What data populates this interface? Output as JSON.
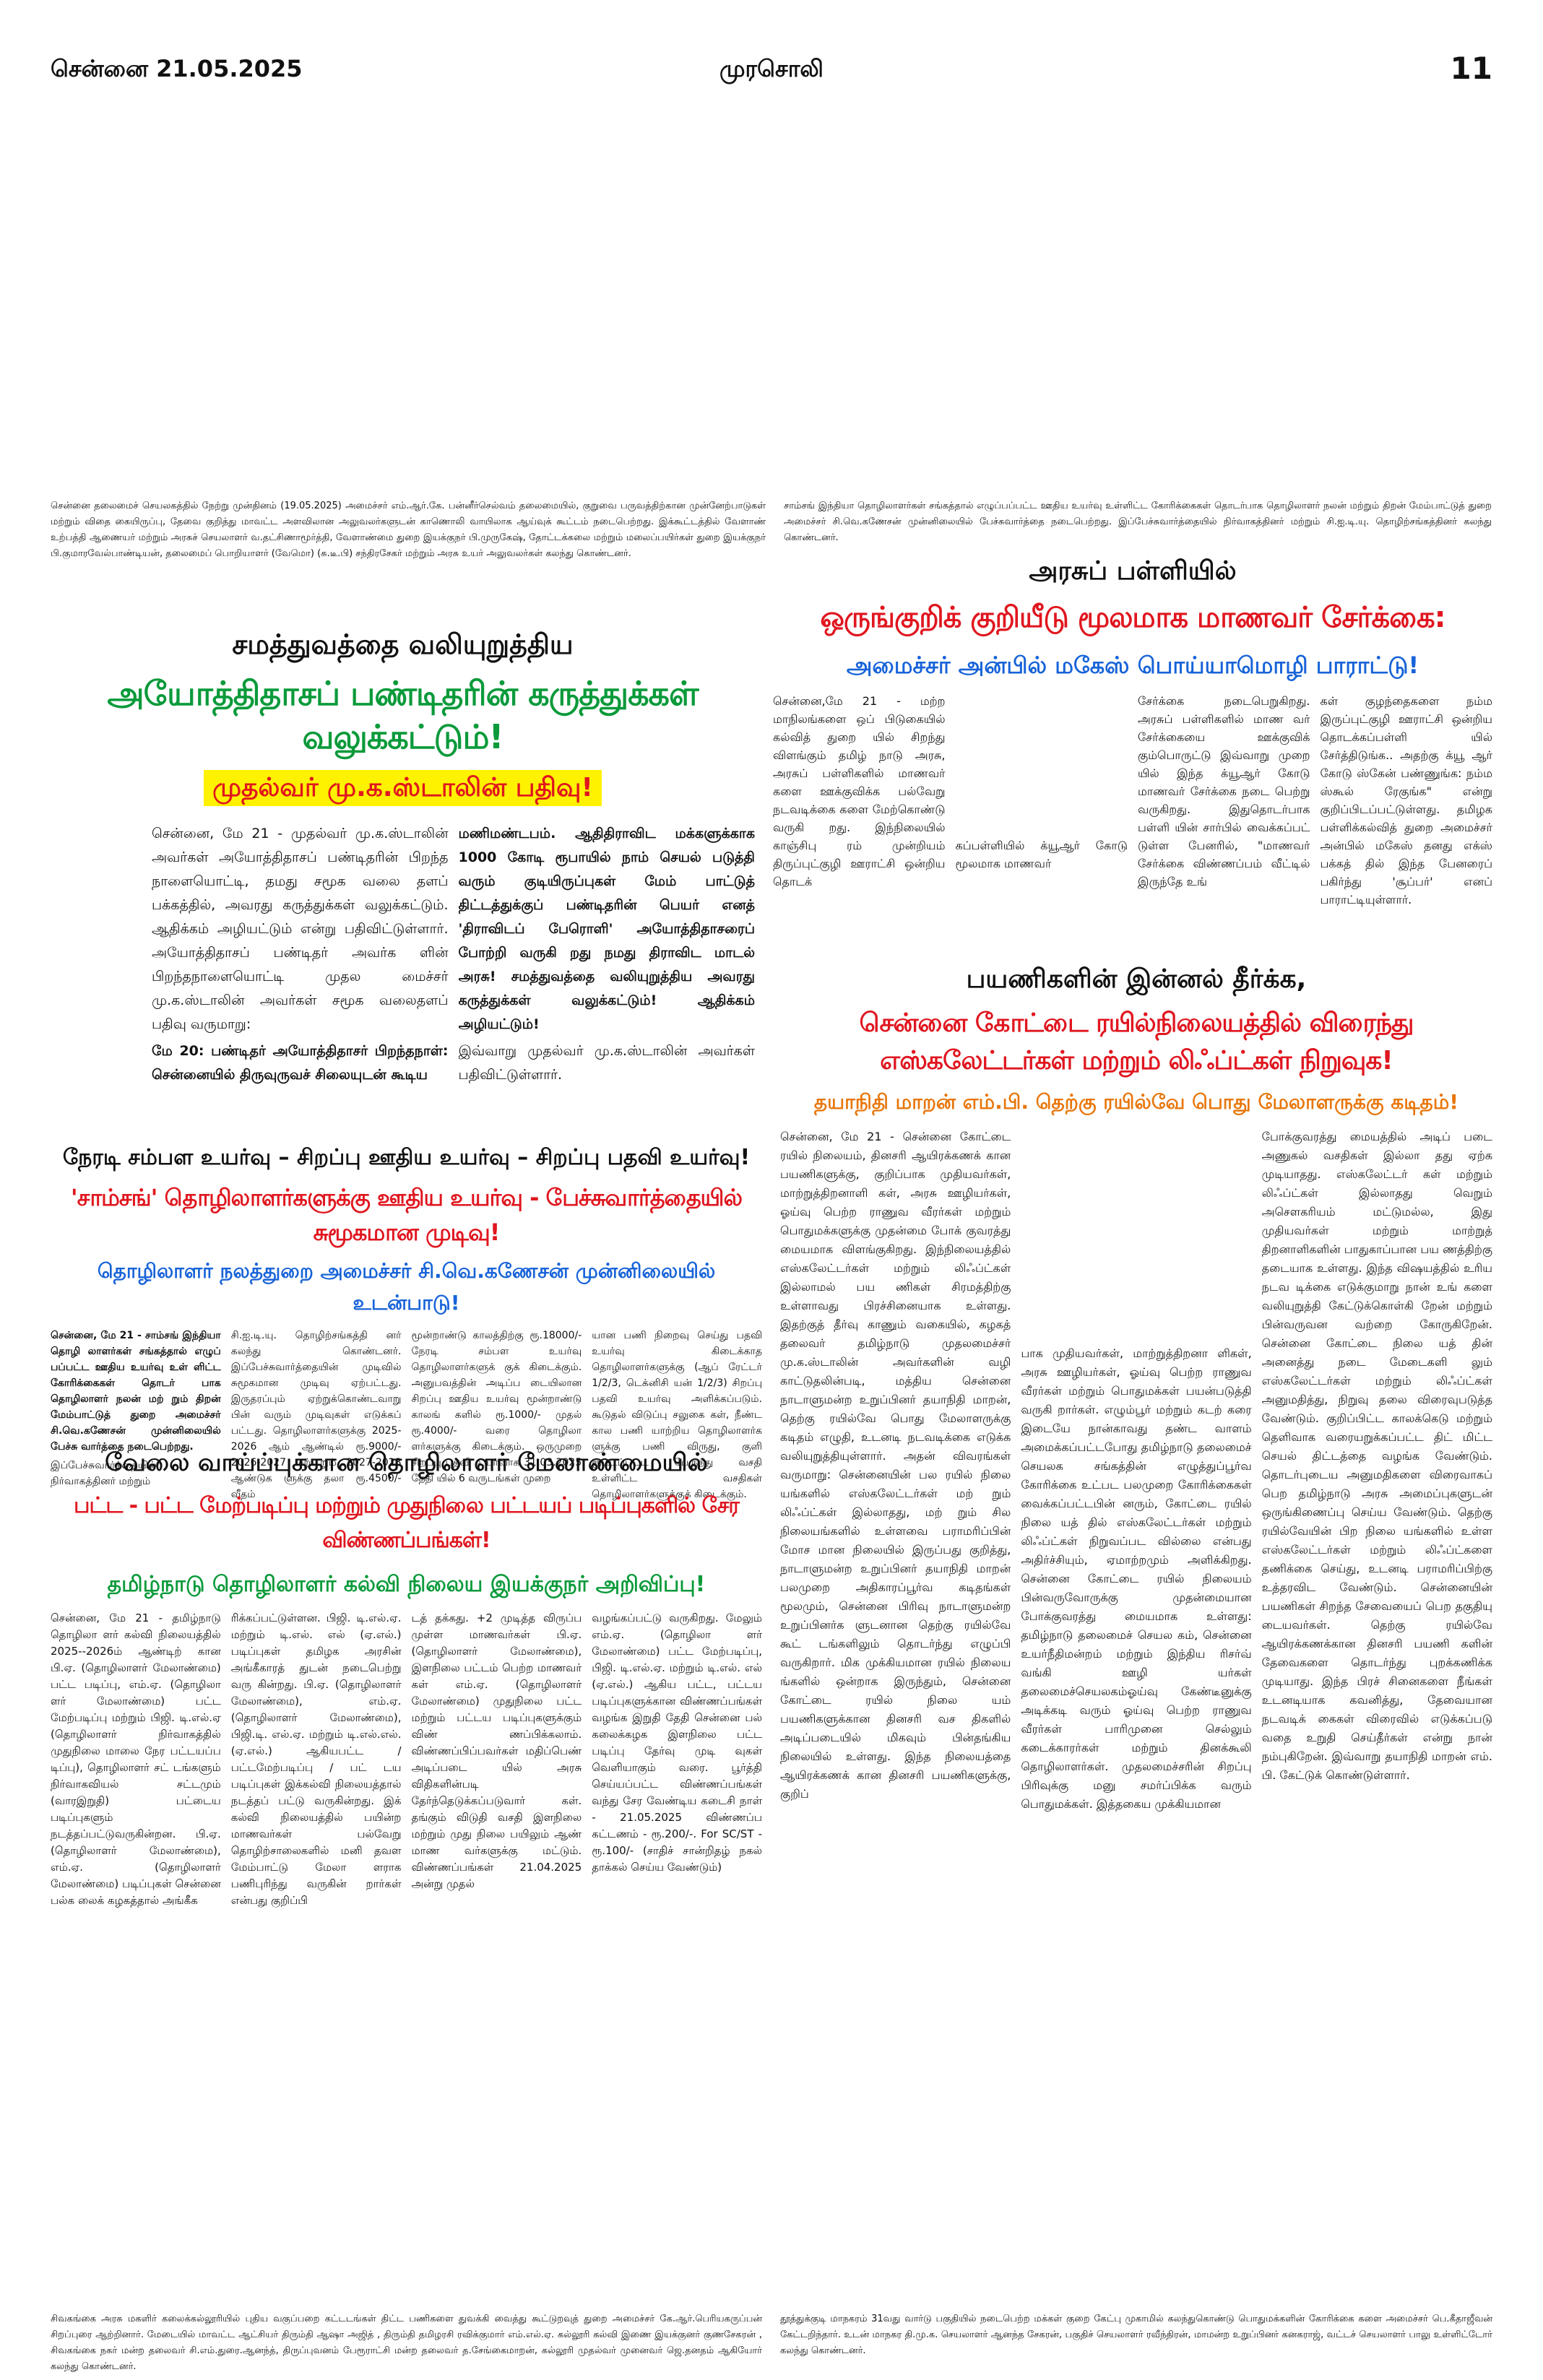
{
  "masthead": {
    "date": "சென்னை 21.05.2025",
    "name": "முரசொலி",
    "page": "11"
  },
  "captions": {
    "top_left": "சென்னை தலைமைச் செயலகத்தில் நேற்று முன்தினம் (19.05.2025) அமைச்சர் எம்.ஆர்.கே. பன்னீர்செல்வம் தலைமையில், குறுவை பருவத்திற்கான முன்னேற்பாடுகள் மற்றும் விதை கையிருப்பு, தேவை குறித்து மாவட்ட அளவிலான அலுவலர்களுடன் காணொலி வாயிலாக ஆய்வுக் கூட்டம் நடைபெற்றது. இக்கூட்டத்தில் வேளாண் உற்பத்தி ஆணையர் மற்றும் அரசுச் செயலாளர் வ.தட்சிணாமூர்த்தி, வேளாண்மை துறை இயக்குநர் பி.முருகேஷ், தோட்டக்கலை மற்றும் மலைப்பயிர்கள் துறை இயக்குநர் பி.குமாரவேல்பாண்டியன், தலைமைப் பொறியாளர் (வேமொ) (சு.டீ.பி) சந்திரசேகர் மற்றும் அரசு உயர் அலுவலர்கள் கலந்து கொண்டனர்.",
    "top_right": "சாம்சங் இந்தியா தொழிலாளர்கள் சங்கத்தால் எழுப்பப்பட்ட ஊதிய உயர்வு உள்ளிட்ட கோரிக்கைகள் தொடர்பாக தொழிலாளர் நலன் மற்றும் திறன் மேம்பாட்டுத் துறை அமைச்சர் சி.வெ.கணேசன் முன்னிலையில் பேச்சுவார்த்தை நடைபெற்றது. இப்பேச்சுவார்த்தையில் நிர்வாகத்தினர் மற்றும் சி.ஐ.டி.யு. தொழிற்சங்கத்தினர் கலந்து கொண்டனர்.",
    "bottom_left": "சிவகங்கை அரசு மகளிர் கலைக்கல்லூரியில் புதிய வகுப்பறை கட்டடங்கள் திட்ட பணிகளை துவக்கி வைத்து கூட்டுறவுத் துறை அமைச்சர் கே.ஆர்.பெரியகருப்பன் சிறப்புரை ஆற்றினார். மேடையில் மாவட்ட ஆட்சியர் திரும்தி ஆஷா அஜித் , திரும்தி தமிழரசி ரவிக்குமார் எம்.எல்.ஏ. கல்லூரி கல்வி இணை இயக்குனர் குணசேகரன் , சிவகங்கை நகர் மன்ற தலைவர் சி.எம்.துரை.ஆனந்த், திருப்புவனம் பேரூராட்சி மன்ற தலைவர் த.சேங்கைமாறன், கல்லூரி முதல்வர் முனைவர் ஜெ.தனதம் ஆகியோர் கலந்து கொண்டனர்.",
    "bottom_right": "தூத்துக்குடி மாநகரம் 31வது வார்டு பகுதியில் நடைபெற்ற மக்கள் குறை கேட்பு முகாமில் கலந்துகொண்டு பொதுமக்களின் கோரிக்கை களை அமைச்சர் பெ.கீதாஜீவன் கேட்டறிந்தார். உடன் மாநகர தி.மு.க. செயலாளர் ஆனந்த சேகரன், பகுதிச் செயலாளர் ரவீந்திரன், மாமன்ற உறுப்பினர் கனகராஜ், வட்டச் செயலாளர் பாலு உள்ளிட்டோர் கலந்து கொண்டனர்."
  },
  "article_stalin": {
    "kicker": "சமத்துவத்தை வலியுறுத்திய",
    "headline": "அயோத்திதாசப் பண்டிதரின் கருத்துக்கள் வலுக்கட்டும்!",
    "subhead": "முதல்வர் மு.க.ஸ்டாலின் பதிவு!",
    "col1": "சென்னை, மே 21 - முதல்வர் மு.க.ஸ்டாலின் அவர்கள் அயோத்திதாசப் பண்டிதரின் பிறந்த நாளையொட்டி, தமது சமூக வலை தளப் பக்கத்தில், அவரது கருத்துக்கள் வலுக்கட்டும். ஆதிக்கம் அழியட்டும் என்று பதிவிட்டுள்ளார். அயோத்திதாசப் பண்டிதர் அவர்க ளின் பிறந்தநாளையொட்டி முதல மைச்சர் மு.க.ஸ்டாலின் அவர்கள் சமூக வலைதளப் பதிவு வருமாறு:",
    "col1_bold": "மே 20: பண்டிதர் அயோத்திதாசர் பிறந்தநாள்: சென்னையில் திருவுருவச் சிலையுடன் கூடிய",
    "col2_bold": "மணிமண்டபம். ஆதிதிராவிட மக்களுக்காக 1000 கோடி ரூபாயில் நாம் செயல் படுத்தி வரும் குடியிருப்புகள் மேம் பாட்டுத் திட்டத்துக்குப் பண்டிதரின் பெயர் எனத் 'திராவிடப் பேரொளி' அயோத்திதாசரைப் போற்றி வருகி றது நமது திராவிட மாடல் அரசு! சமத்துவத்தை வலியுறுத்திய அவரது கருத்துக்கள் வலுக்கட்டும்! ஆதிக்கம் அழியட்டும்!",
    "col2": "இவ்வாறு முதல்வர் மு.க.ஸ்டாலின் அவர்கள் பதிவிட்டுள்ளார்."
  },
  "article_school": {
    "kicker": "அரசுப் பள்ளியில்",
    "headline": "ஒருங்குறிக் குறியீடு மூலமாக மாணவர் சேர்க்கை:",
    "subhead": "அமைச்சர் அன்பில் மகேஸ் பொய்யாமொழி பாராட்டு!",
    "col1": "சென்னை,மே 21 - மற்ற மாநிலங்களை ஒப் பிடுகையில் கல்வித் துறை யில் சிறந்து விளங்கும் தமிழ் நாடு அரசு, அரசுப் பள்ளிகளில் மாணவர் களை ஊக்குவிக்க பல்வேறு நடவடிக்கை களை மேற்கொண்டு வருகி றது. இந்நிலையில் காஞ்சிபு ரம் முன்றியம் திருப்புட்குழி ஊராட்சி ஒன்றிய தொடக்",
    "col2": "கப்பள்ளியில் க்யூஆர் கோடு மூலமாக மாணவர்",
    "col3": "சேர்க்கை நடைபெறுகிறது. அரசுப் பள்ளிகளில் மாண வர் சேர்க்கையை ஊக்குவிக் கும்பொருட்டு இவ்வாறு முறை யில் இந்த க்யூஆர் கோடு மாணவர் சேர்க்கை நடை பெற்று வருகிறது. இதுதொடர்பாக பள்ளி யின் சார்பில் வைக்கப்பட் டுள்ள பேனரில், \"மாணவர் சேர்க்கை விண்ணப்பம் வீட்டில் இருந்தே உங்",
    "col4": "கள் குழந்தைகளை நம்ம இருப்புட்குழி ஊராட்சி ஒன்றிய தொடக்கப்பள்ளி யில் சேர்த்திடுங்க.. அதற்கு க்யூ ஆர் கோடு ஸ்கேன் பண்ணுங்க: நம்ம ஸ்கூல் ரேகுங்க\" என்று குறிப்பிடப்பட்டுள்ளது. தமிழக பள்ளிக்கல்வித் துறை அமைச்சர் அன்பில் மகேஸ் தனது எக்ஸ் பக்கத் தில் இந்த பேனரைப் பகிர்ந்து 'சூப்பர்' எனப் பாராட்டியுள்ளார்."
  },
  "article_samsung": {
    "kicker": "நேரடி சம்பள உயர்வு – சிறப்பு ஊதிய உயர்வு – சிறப்பு பதவி உயர்வு!",
    "headline": "'சாம்சங்' தொழிலாளர்களுக்கு ஊதிய உயர்வு - பேச்சுவார்த்தையில் சுமூகமான முடிவு!",
    "subhead": "தொழிலாளர் நலத்துறை அமைச்சர் சி.வெ.கணேசன் முன்னிலையில் உடன்பாடு!",
    "col1_bold": "சென்னை, மே 21 - சாம்சங் இந்தியா தொழி லாளர்கள் சங்கத்தால் எழுப் பப்பட்ட ஊதிய உயர்வு உள் ளிட்ட கோரிக்கைகள் தொடர் பாக தொழிலாளர் நலன் மற் றும் திறன் மேம்பாட்டுத் துறை அமைச்சர் சி.வெ.கணேசன் முன்னிலையில் பேச்சு வார்த்தை நடைபெற்றது.",
    "col1": "இப்பேச்சுவார்த்தையில் நிர்வாகத்தினர் மற்றும்",
    "col2": "சி.ஐ.டி.யு. தொழிற்சங்கத்தி னர் கலந்து கொண்டனர். இப்பேச்சுவார்த்தையின் முடிவில் சுமூகமான முடிவு ஏற்பட்டது. இருதரப்பும் ஏற்றுக்கொண்டவாறு பின் வரும் முடிவுகள் எடுக்கப் பட்டது. தொழிலாளர்களுக்கு 2025-2026 ஆம் ஆண்டில் ரூ.9000/- 2026-2027 மற் றும் 2027-2028 ஆண்டுக ளுக்கு தலா ரூ.4500/- வீதம்",
    "col3": "மூன்றாண்டு காலத்திற்கு ரூ.18000/- நேரடி சம்பள உயர்வு தொழிலாளர்களுக் குக் கிடைக்கும். அனுபவத்தின் அடிப்ப டையிலான சிறப்பு ஊதிய உயர்வு மூன்றாண்டு காலங் களில் ரூ.1000/- முதல் ரூ.4000/- வரை தொழிலா ளர்களுக்கு கிடைக்கும். ஒருமுறை சிறப்பு பதவி உயர்வாக 31.03.2025 தேதி யில் 6 வருடங்கள் முறை",
    "col4": "யான பணி நிறைவு செய்து பதவி உயர்வு கிடைக்காத தொழிலாளர்களுக்கு (ஆப் ரேட்டர் 1/2/3, டெக்னிசி யன் 1/2/3) சிறப்பு பதவி உயர்வு அளிக்கப்படும். கூடுதல் விடுப்பு சலுகை கள், நீண்ட கால பணி யாற்றிய தொழிலாளர்க ளுக்கு பணி விருது, குளி ரூட்டப்பட்ட பேருந்து வசதி உள்ளிட்ட வசதிகள் தொழிலாளர்களுக்குக் கிடைக்கும்."
  },
  "article_escalator": {
    "kicker": "பயணிகளின் இன்னல் தீர்க்க,",
    "headline": "சென்னை கோட்டை ரயில்நிலையத்தில் விரைந்து எஸ்கலேட்டர்கள் மற்றும் லிஃப்ட்கள் நிறுவுக!",
    "subhead": "தயாநிதி மாறன் எம்.பி. தெற்கு ரயில்வே பொது மேலாளருக்கு கடிதம்!",
    "col1": "சென்னை, மே 21 - சென்னை கோட்டை ரயில் நிலையம், தினசரி ஆயிரக்கணக் கான பயணிகளுக்கு, குறிப்பாக முதியவர்கள், மாற்றுத்திறனாளி கள், அரசு ஊழியர்கள், ஓய்வு பெற்ற ராணுவ வீரர்கள் மற்றும் பொதுமக்களுக்கு முதன்மை போக் குவரத்து மையமாக விளங்குகிறது. இந்நிலையத்தில் எஸ்கலேட்டர்கள் மற்றும் லிஃப்ட்கள் இல்லாமல் பய ணிகள் சிரமத்திற்கு உள்ளாவது பிரச்சினையாக உள்ளது. இதற்குத் தீர்வு காணும் வகையில், கழகத் தலைவர் தமிழ்நாடு முதலமைச்சர் மு.க.ஸ்டாலின் அவர்களின் வழி காட்டுதலின்படி, மத்திய சென்னை நாடாளுமன்ற உறுப்பினர் தயாநிதி மாறன், தெற்கு ரயில்வே பொது மேலாளருக்கு கடிதம் எழுதி, உடனடி நடவடிக்கை எடுக்க வலியுறுத்தியுள்ளார். அதன் விவரங்கள் வருமாறு: சென்னையின் பல ரயில் நிலை யங்களில் எஸ்கலேட்டர்கள் மற் றும் லிஃப்ட்கள் இல்லாதது, மற் றும் சில நிலையங்களில் உள்ளவை பராமரிப்பின் மோச மான நிலையில் இருப்பது குறித்து, நாடாளுமன்ற உறுப்பினர் தயாநிதி மாறன் பலமுறை அதிகாரப்பூர்வ கடிதங்கள் மூலமும், சென்னை பிரிவு நாடாளுமன்ற உறுப்பினர்க ளுடனான தெற்கு ரயில்வே கூட் டங்களிலும் தொடர்ந்து எழுப்பி வருகிறார். மிக முக்கியமான ரயில் நிலைய ங்களில் ஒன்றாக இருந்தும், சென்னை கோட்டை ரயில் நிலை யம் பயணிகளுக்கான தினசரி வச திகளில் அடிப்படையில் மிகவும் பின்தங்கிய நிலையில் உள்ளது. இந்த நிலையத்தை ஆயிரக்கணக் கான தினசரி பயணிகளுக்கு, குறிப்",
    "col2": "பாக முதியவர்கள், மாற்றுத்திறனா ளிகள், அரசு ஊழியர்கள், ஓய்வு பெற்ற ராணுவ வீரர்கள் மற்றும் பொதுமக்கள் பயன்படுத்தி வருகி றார்கள். எழும்பூர் மற்றும் கடற் கரை இடையே நான்காவது தண்ட வாளம் அமைக்கப்பட்டபோது தமிழ்நாடு தலைமைச் செயலக சங்கத்தின் எழுத்துப்பூர்வ கோரிக்கை உட்பட பலமுறை கோரிக்கைகள் வைக்கப்பட்டபின் னரும், கோட்டை ரயில் நிலை யத் தில் எஸ்கலேட்டர்கள் மற்றும் லிஃப்ட்கள் நிறுவப்பட வில்லை என்பது அதிர்ச்சியும், ஏமாற்றமும் அளிக்கிறது. சென்னை கோட்டை ரயில் நிலையம் பின்வருவோருக்கு முதன்மையான போக்குவரத்து மையமாக உள்ளது: தமிழ்நாடு தலைமைச் செயல கம், சென்னை உயர்நீதிமன்றம் மற்றும் இந்திய ரிசர்வ் வங்கி ஊழி யர்கள் தலைமைச்செயலகம்ஓய்வு கேண்டீனுக்கு அடிக்கடி வரும் ஓய்வு பெற்ற ராணுவ வீரர்கள் பாரிமுனை செல்லும் கடைக்காரர்கள் மற்றும் தினக்கூலி தொழிலாளர்கள். முதலமைச்சரின் சிறப்பு பிரிவுக்கு மனு சமர்ப்பிக்க வரும் பொதுமக்கள். இத்தகைய முக்கியமான",
    "col3": "போக்குவரத்து மையத்தில் அடிப் படை அணுகல் வசதிகள் இல்லா தது ஏற்க முடியாதது. எஸ்கலேட்டர் கள் மற்றும் லிஃப்ட்கள் இல்லாதது வெறும் அசௌகரியம் மட்டுமல்ல, இது முதியவர்கள் மற்றும் மாற்றுத் திறனாளிகளின் பாதுகாப்பான பய ணத்திற்கு தடையாக உள்ளது. இந்த விஷயத்தில் உரிய நடவ டிக்கை எடுக்குமாறு நான் உங் களை வலியுறுத்தி கேட்டுக்கொள்கி றேன் மற்றும் பின்வருவன வற்றை கோருகிறேன். சென்னை கோட்டை நிலை யத் தின் அனைத்து நடை மேடைகளி லும் எஸ்கலேட்டர்கள் மற்றும் லிஃப்ட்கள் அனுமதித்து, நிறுவு தலை விரைவுபடுத்த வேண்டும். குறிப்பிட்ட காலக்கெடு மற்றும் தெளிவாக வரையறுக்கப்பட்ட திட் மிட்ட செயல் திட்டத்தை வழங்க வேண்டும். தொடர்புடைய அனுமதிகளை விரைவாகப் பெற தமிழ்நாடு அரசு அமைப்புகளுடன் ஒருங்கிணைப்பு செய்ய வேண்டும். தெற்கு ரயில்வேயின் பிற நிலை யங்களில் உள்ள எஸ்கலேட்டர்கள் மற்றும் லிஃப்ட்களை தணிக்கை செய்து, உடனடி பராமரிப்பிற்கு உத்தரவிட வேண்டும். சென்னையின் பயணிகள் சிறந்த சேவையைப் பெற தகுதியு டையவர்கள். தெற்கு ரயில்வே ஆயிரக்கணக்கான தினசரி பயணி களின் தேவைகளை தொடர்ந்து புறக்கணிக்க முடியாது. இந்த பிரச் சினைகளை நீங்கள் உடனடியாக கவனித்து, தேவையான நடவடிக் கைகள் விரைவில் எடுக்கப்படு வதை உறுதி செய்தீர்கள் என்று நான் நம்புகிறேன். இவ்வாறு தயாநிதி மாறன் எம். பி. கேட்டுக் கொண்டுள்ளார்."
  },
  "article_education": {
    "kicker": "வேலை வாய்ப்புக்கான தொழிலாளர் மேலாண்மையில்",
    "headline": "பட்ட - பட்ட மேற்படிப்பு மற்றும் முதுநிலை பட்டயப் படிப்புகளில் சேர விண்ணப்பங்கள்!",
    "subhead": "தமிழ்நாடு தொழிலாளர் கல்வி நிலைய இயக்குநர் அறிவிப்பு!",
    "col1": "சென்னை, மே 21 - தமிழ்நாடு தொழிலா ளர் கல்வி நிலையத்தில் 2025--2026ம் ஆண்டிற் கான பி.ஏ. (தொழிலாளர் மேலாண்மை) பட்ட படிப்பு, எம்.ஏ. (தொழிலா ளர் மேலாண்மை) பட்ட மேற்படிப்பு மற்றும் பிஜி. டி.எல்.ஏ (தொழிலாளர் நிர்வாகத்தில் முதுநிலை மாலை நேர பட்டயப்ப டிப்பு), தொழிலாளர் சட் டங்களும் நிர்வாகவியல் சட்டமும் (வாரஇறுதி) பட்டைய படிப்புகளும் நடத்தப்பட்டுவருகின்றன. பி.ஏ. (தொழிலாளர் மேலாண்மை), எம்.ஏ. (தொழிலாளர் மேலாண்மை) படிப்புகள் சென்னை பல்க லைக் கழகத்தால் அங்கீக",
    "col2": "ரிக்கப்பட்டுள்ளன. பிஜி. டி.எல்.ஏ. மற்றும் டி.எல். எல் (ஏ.எல்.) படிப்புகள் தமிழக அரசின் அங்கீகாரத் துடன் நடைபெற்று வரு கின்றது. பி.ஏ. (தொழிலாளர் மேலாண்மை), எம்.ஏ. (தொழிலாளர் மேலாண்மை), பிஜி.டி. எல்.ஏ. மற்றும் டி.எல்.எல். (ஏ.எல்.) ஆகியபட்ட / பட்டமேற்படிப்பு / பட் டய படிப்புகள் இக்கல்வி நிலையத்தால் நடத்தப் பட்டு வருகின்றது. இக் கல்வி நிலையத்தில் பயின்ற மாணவர்கள் பல்வேறு தொழிற்சாலைகளில் மனி தவள மேம்பாட்டு மேலா ளராக பணிபுரிந்து வருகின் றார்கள் என்பது குறிப்பி",
    "col3": "டத் தக்கது. +2 முடித்த விருப்ப முள்ள மாணவர்கள் பி.ஏ. (தொழிலாளர் மேலாண்மை), இளநிலை பட்டம் பெற்ற மாணவர் கள் எம்.ஏ. (தொழிலாளர் மேலாண்மை) முதுநிலை பட்ட மற்றும் பட்டய படிப்புகளுக்கும் விண் ணப்பிக்கலாம். விண்ணப்பிப்பவர்கள் மதிப்பெண் அடிப்படை யில் அரசு விதிகளின்படி தேர்ந்தெடுக்கப்படுவார் கள். தங்கும் விடுதி வசதி இளநிலை மற்றும் முது நிலை பயிலும் ஆண் மாண வர்களுக்கு மட்டும். விண்ணப்பங்கள் 21.04.2025 அன்று முதல்",
    "col4": "வழங்கப்பட்டு வருகிறது. மேலும் எம்.ஏ. (தொழிலா ளர் மேலாண்மை) பட்ட மேற்படிப்பு, பிஜி. டி.எல்.ஏ. மற்றும் டி.எல். எல் (ஏ.எல்.) ஆகிய பட்ட, பட்டய படிப்புகளுக்கான விண்ணப்பங்கள் வழங்க இறுதி தேதி சென்னை பல் கலைக்கழக இளநிலை பட்ட படிப்பு தேர்வு முடி வுகள் வெளியாகும் வரை. பூர்த்தி செய்யப்பட்ட விண்ணப்பங்கள் வந்து சேர வேண்டிய கடைசி நாள் - 21.05.2025 விண்ணப்ப கட்டணம் - ரூ.200/-. For SC/ST - ரூ.100/- (சாதிச் சான்றிதழ் நகல் தாக்கல் செய்ய வேண்டும்)"
  }
}
